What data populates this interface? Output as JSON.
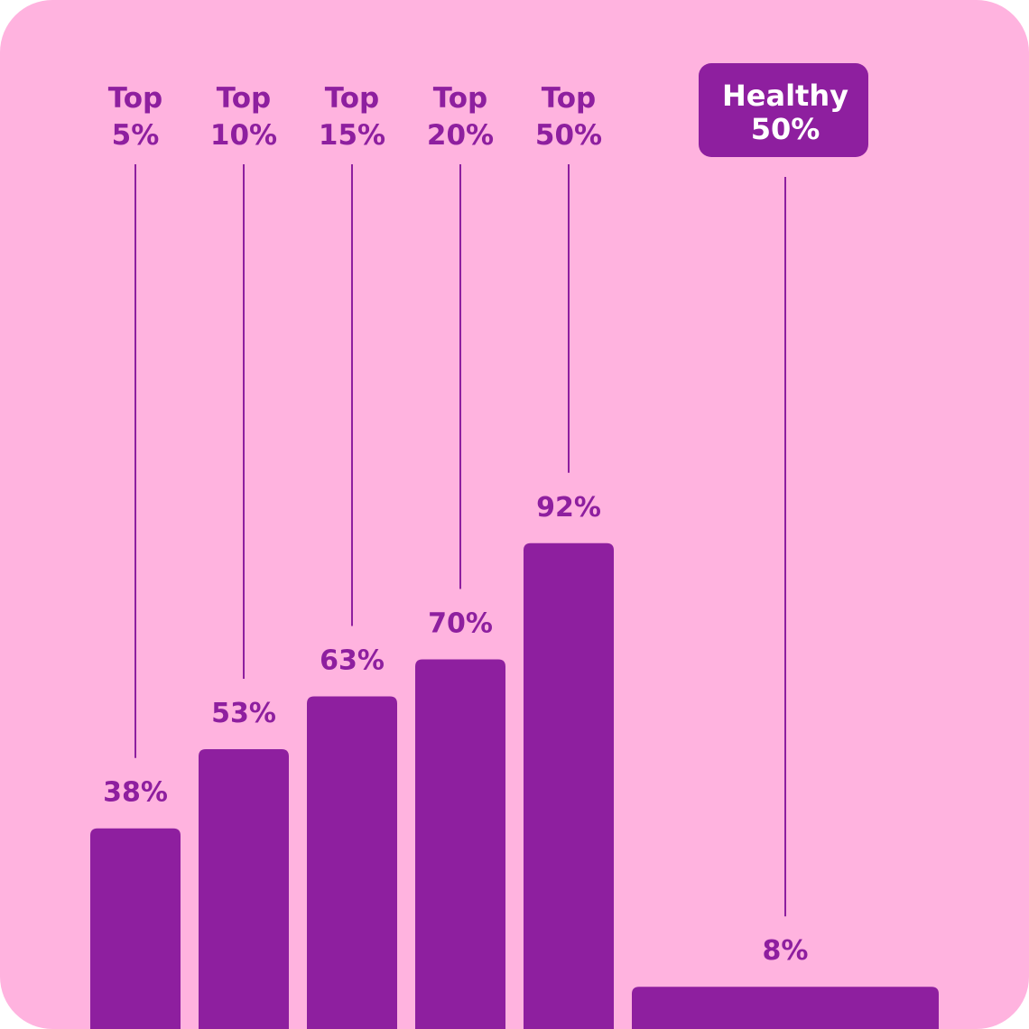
{
  "colors": {
    "background": "#FFB3DF",
    "accent": "#8E1F9F",
    "highlight_text": "#FFFFFF"
  },
  "chart_data": {
    "type": "bar",
    "categories": [
      {
        "line1": "Top",
        "line2": "5%"
      },
      {
        "line1": "Top",
        "line2": "10%"
      },
      {
        "line1": "Top",
        "line2": "15%"
      },
      {
        "line1": "Top",
        "line2": "20%"
      },
      {
        "line1": "Top",
        "line2": "50%"
      },
      {
        "line1": "Healthy",
        "line2": "50%",
        "highlighted": true
      }
    ],
    "values": [
      38,
      53,
      63,
      70,
      92,
      8
    ],
    "value_labels": [
      "38%",
      "53%",
      "63%",
      "70%",
      "92%",
      "8%"
    ],
    "ylim": [
      0,
      100
    ],
    "grid": false,
    "legend": "none"
  }
}
